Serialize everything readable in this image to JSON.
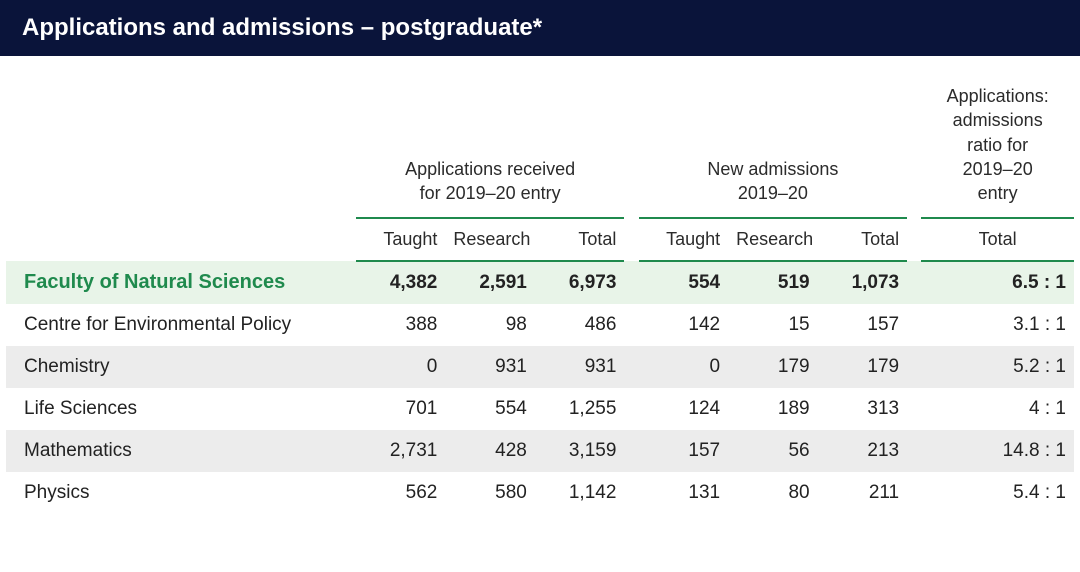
{
  "title": "Applications and admissions – postgraduate*",
  "columns": {
    "group1": "Applications received\nfor  2019–20 entry",
    "group2": "New admissions\n2019–20",
    "group3": "Applications:\nadmissions\nratio for\n2019–20\nentry",
    "sub": [
      "Taught",
      "Research",
      "Total",
      "Taught",
      "Research",
      "Total",
      "Total"
    ]
  },
  "rows": [
    {
      "label": "Faculty of Natural Sciences",
      "class": "row-faculty",
      "cells": [
        "4,382",
        "2,591",
        "6,973",
        "554",
        "519",
        "1,073",
        "6.5 : 1"
      ]
    },
    {
      "label": "Centre for Environmental Policy",
      "class": "row",
      "cells": [
        "388",
        "98",
        "486",
        "142",
        "15",
        "157",
        "3.1 : 1"
      ]
    },
    {
      "label": "Chemistry",
      "class": "row-alt",
      "cells": [
        "0",
        "931",
        "931",
        "0",
        "179",
        "179",
        "5.2 : 1"
      ]
    },
    {
      "label": "Life Sciences",
      "class": "row",
      "cells": [
        "701",
        "554",
        "1,255",
        "124",
        "189",
        "313",
        "4 : 1"
      ]
    },
    {
      "label": "Mathematics",
      "class": "row-alt",
      "cells": [
        "2,731",
        "428",
        "3,159",
        "157",
        "56",
        "213",
        "14.8 : 1"
      ]
    },
    {
      "label": "Physics",
      "class": "row",
      "cells": [
        "562",
        "580",
        "1,142",
        "131",
        "80",
        "211",
        "5.4 : 1"
      ]
    }
  ],
  "colors": {
    "title_bg": "#0a143a",
    "title_text": "#ffffff",
    "accent": "#1f8a4d",
    "row_alt": "#ececec",
    "row_faculty": "#e8f4e8",
    "text": "#222222"
  }
}
